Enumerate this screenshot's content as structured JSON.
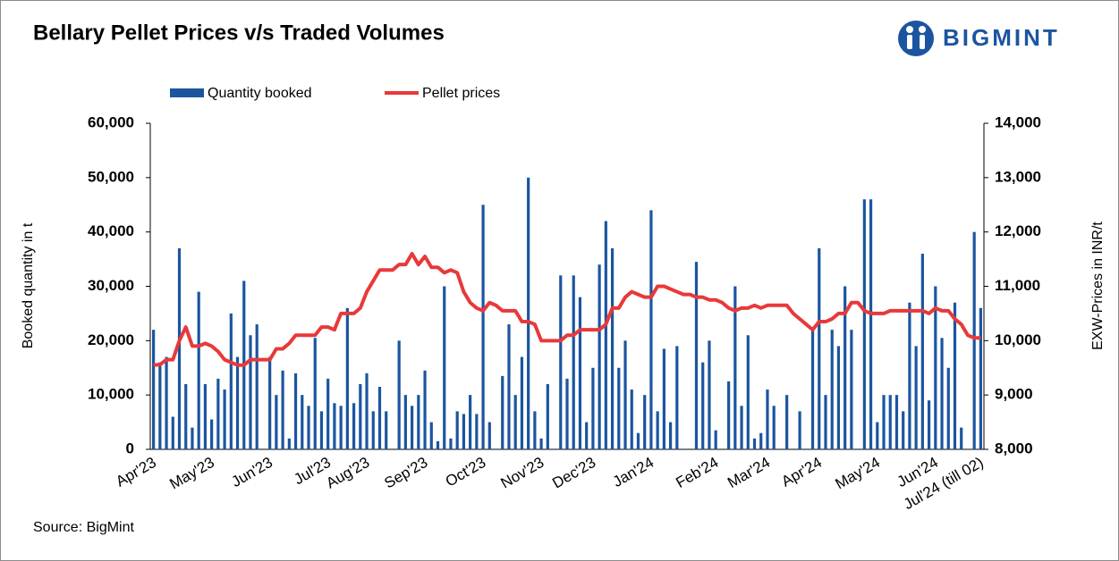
{
  "chart_data": {
    "type": "bar",
    "title": "Bellary Pellet Prices v/s Traded Volumes",
    "logo": "BIGMINT",
    "source": "Source: BigMint",
    "ylabel": "Booked quantity in t",
    "y2label": "EXW-Prices in INR/t",
    "legend": "top",
    "categories": [
      "Apr'23",
      null,
      null,
      null,
      null,
      null,
      null,
      null,
      null,
      "May'23",
      null,
      null,
      null,
      null,
      null,
      null,
      null,
      null,
      "Jun'23",
      null,
      null,
      null,
      null,
      null,
      null,
      null,
      null,
      "Jul'23",
      null,
      null,
      null,
      null,
      null,
      "Aug'23",
      null,
      null,
      null,
      null,
      null,
      null,
      null,
      null,
      "Sep'23",
      null,
      null,
      null,
      null,
      null,
      null,
      null,
      null,
      "Oct'23",
      null,
      null,
      null,
      null,
      null,
      null,
      null,
      null,
      "Nov'23",
      null,
      null,
      null,
      null,
      null,
      null,
      null,
      "Dec'23",
      null,
      null,
      null,
      null,
      null,
      null,
      null,
      null,
      "Jan'24",
      null,
      null,
      null,
      null,
      null,
      null,
      null,
      null,
      null,
      "Feb'24",
      null,
      null,
      null,
      null,
      null,
      null,
      null,
      "Mar'24",
      null,
      null,
      null,
      null,
      null,
      null,
      null,
      "Apr'24",
      null,
      null,
      null,
      null,
      null,
      null,
      null,
      null,
      "May'24",
      null,
      null,
      null,
      null,
      null,
      null,
      null,
      null,
      "Jun'24",
      null,
      null,
      null,
      null,
      null,
      null,
      "Jul'24 (till 02)"
    ],
    "series": [
      {
        "name": "Quantity booked",
        "type": "bar",
        "axis": "y",
        "color": "#1b55a0",
        "values": [
          22000,
          16000,
          17000,
          6000,
          37000,
          12000,
          4000,
          29000,
          12000,
          5500,
          13000,
          11000,
          25000,
          17000,
          31000,
          21000,
          23000,
          0,
          17000,
          10000,
          14500,
          2000,
          14000,
          10000,
          8000,
          20500,
          7000,
          13000,
          8500,
          8000,
          26000,
          8500,
          12000,
          14000,
          7000,
          11500,
          7000,
          0,
          20000,
          10000,
          8000,
          10000,
          14500,
          5000,
          1500,
          30000,
          2000,
          7000,
          6500,
          10000,
          6500,
          45000,
          5000,
          0,
          13500,
          23000,
          10000,
          17000,
          50000,
          7000,
          2000,
          12000,
          0,
          32000,
          13000,
          32000,
          28000,
          5000,
          15000,
          34000,
          42000,
          37000,
          15000,
          20000,
          11000,
          3000,
          10000,
          44000,
          7000,
          18500,
          5000,
          19000,
          0,
          0,
          34500,
          16000,
          20000,
          3500,
          0,
          12500,
          30000,
          8000,
          21000,
          2000,
          3000,
          11000,
          8000,
          0,
          10000,
          0,
          7000,
          0,
          22000,
          37000,
          10000,
          22000,
          19000,
          30000,
          22000,
          0,
          46000,
          46000,
          5000,
          10000,
          10000,
          10000,
          7000,
          27000,
          19000,
          36000,
          9000,
          30000,
          20500,
          15000,
          27000,
          4000,
          0,
          40000,
          26000
        ]
      },
      {
        "name": "Pellet prices",
        "type": "line",
        "axis": "y2",
        "color": "#e8393a",
        "values": [
          9550,
          9560,
          9650,
          9650,
          10000,
          10250,
          9900,
          9900,
          9950,
          9900,
          9800,
          9650,
          9600,
          9550,
          9550,
          9650,
          9650,
          9650,
          9650,
          9850,
          9850,
          9950,
          10100,
          10100,
          10100,
          10100,
          10250,
          10250,
          10200,
          10500,
          10500,
          10500,
          10600,
          10900,
          11100,
          11300,
          11300,
          11300,
          11400,
          11400,
          11600,
          11400,
          11550,
          11350,
          11350,
          11250,
          11300,
          11250,
          10900,
          10700,
          10600,
          10550,
          10700,
          10650,
          10550,
          10550,
          10550,
          10350,
          10350,
          10300,
          10000,
          10000,
          10000,
          10000,
          10100,
          10100,
          10200,
          10200,
          10200,
          10200,
          10300,
          10600,
          10600,
          10800,
          10900,
          10850,
          10800,
          10800,
          11000,
          11000,
          10950,
          10900,
          10850,
          10850,
          10800,
          10800,
          10750,
          10750,
          10700,
          10600,
          10550,
          10600,
          10600,
          10650,
          10600,
          10650,
          10650,
          10650,
          10650,
          10500,
          10400,
          10300,
          10200,
          10350,
          10350,
          10400,
          10500,
          10500,
          10700,
          10700,
          10550,
          10500,
          10500,
          10500,
          10550,
          10550,
          10550,
          10550,
          10550,
          10550,
          10500,
          10600,
          10550,
          10550,
          10400,
          10300,
          10100,
          10050,
          10050
        ]
      }
    ],
    "ylim": [
      0,
      60000
    ],
    "yticks": [
      0,
      {
        "value": 10000,
        "label": "10,000"
      },
      {
        "value": 20000,
        "label": "20,000"
      },
      {
        "value": 30000,
        "label": "30,000"
      },
      {
        "value": 40000,
        "label": "40,000"
      },
      {
        "value": 50000,
        "label": "50,000"
      },
      {
        "value": 60000,
        "label": "60,000"
      }
    ],
    "y2lim": [
      8000,
      14000
    ],
    "y2ticks": [
      {
        "value": 8000,
        "label": "8,000"
      },
      {
        "value": 9000,
        "label": "9,000"
      },
      {
        "value": 10000,
        "label": "10,000"
      },
      {
        "value": 11000,
        "label": "11,000"
      },
      {
        "value": 12000,
        "label": "12,000"
      },
      {
        "value": 13000,
        "label": "13,000"
      },
      {
        "value": 14000,
        "label": "14,000"
      }
    ],
    "grid": false
  }
}
